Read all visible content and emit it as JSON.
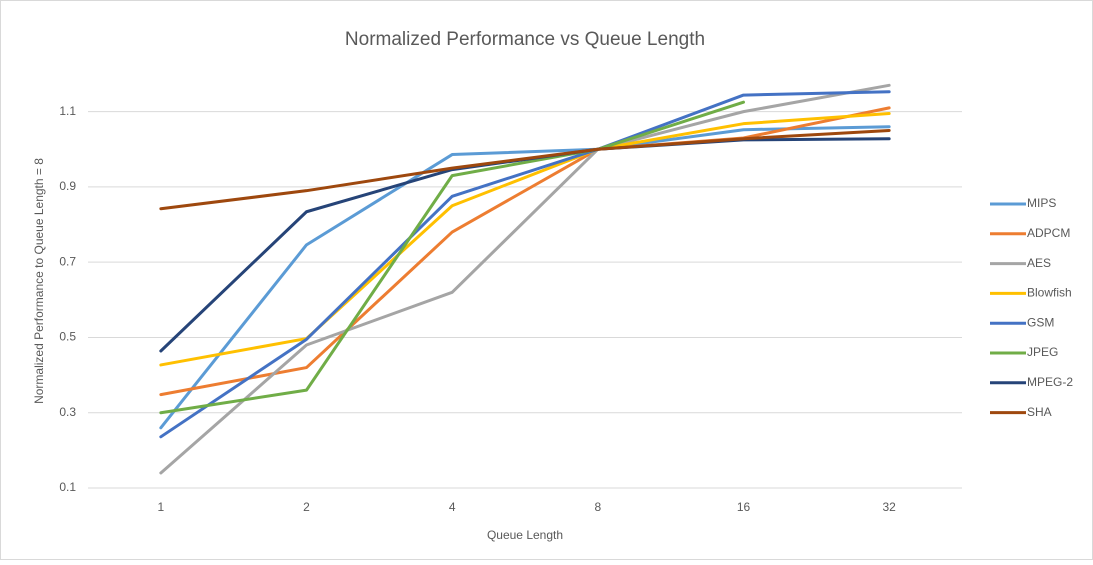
{
  "chart_data": {
    "type": "line",
    "title": "Normalized Performance vs Queue Length",
    "x_label": "Queue Length",
    "y_label": "Normalized Performance to Queue Length = 8",
    "categories": [
      "1",
      "2",
      "4",
      "8",
      "16",
      "32"
    ],
    "ylim": [
      0.1,
      1.2
    ],
    "yticks": [
      0.1,
      0.3,
      0.5,
      0.7,
      0.9,
      1.1
    ],
    "grid": true,
    "legend": "right",
    "series": [
      {
        "name": "MIPS",
        "color": "#5b9bd5",
        "values": [
          0.26,
          0.746,
          0.986,
          1.0,
          1.052,
          1.06
        ]
      },
      {
        "name": "ADPCM",
        "color": "#ed7d31",
        "values": [
          0.348,
          0.42,
          0.78,
          1.0,
          1.03,
          1.11
        ]
      },
      {
        "name": "AES",
        "color": "#a5a5a5",
        "values": [
          0.14,
          0.48,
          0.62,
          1.0,
          1.1,
          1.17
        ]
      },
      {
        "name": "Blowfish",
        "color": "#ffc000",
        "values": [
          0.427,
          0.497,
          0.85,
          1.0,
          1.068,
          1.095
        ]
      },
      {
        "name": "GSM",
        "color": "#4472c4",
        "values": [
          0.236,
          0.495,
          0.875,
          1.0,
          1.144,
          1.153
        ]
      },
      {
        "name": "JPEG",
        "color": "#70ad47",
        "values": [
          0.3,
          0.36,
          0.93,
          1.0,
          1.125,
          null
        ]
      },
      {
        "name": "MPEG-2",
        "color": "#264478",
        "values": [
          0.464,
          0.834,
          0.946,
          1.0,
          1.025,
          1.028
        ]
      },
      {
        "name": "SHA",
        "color": "#9e480e",
        "values": [
          0.842,
          0.89,
          0.95,
          1.0,
          1.028,
          1.05
        ]
      }
    ]
  }
}
